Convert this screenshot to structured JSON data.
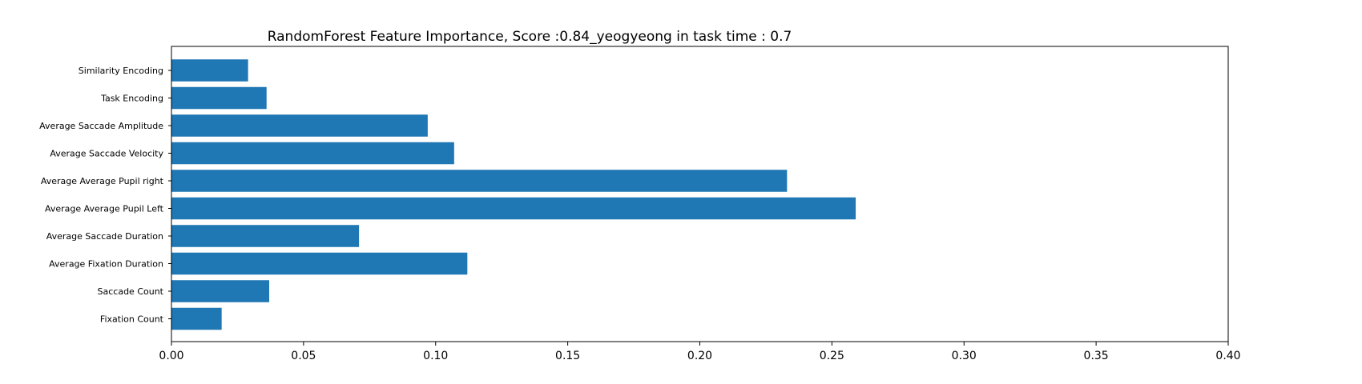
{
  "chart_data": {
    "type": "bar",
    "orientation": "horizontal",
    "title": "RandomForest Feature Importance, Score :0.84_yeogyeong in task time : 0.7",
    "xlabel": "",
    "ylabel": "",
    "categories": [
      "Fixation Count",
      "Saccade Count",
      "Average Fixation Duration",
      "Average Saccade Duration",
      "Average Average Pupil Left",
      "Average Average Pupil right",
      "Average Saccade Velocity",
      "Average Saccade Amplitude",
      "Task Encoding",
      "Similarity Encoding"
    ],
    "values": [
      0.019,
      0.037,
      0.112,
      0.071,
      0.259,
      0.233,
      0.107,
      0.097,
      0.036,
      0.029
    ],
    "xlim": [
      0,
      0.4
    ],
    "xticks": [
      "0.00",
      "0.05",
      "0.10",
      "0.15",
      "0.20",
      "0.25",
      "0.30",
      "0.35",
      "0.40"
    ],
    "grid": false,
    "legend": "none",
    "bar_color": "#1f77b4",
    "axis_color": "#000000"
  }
}
